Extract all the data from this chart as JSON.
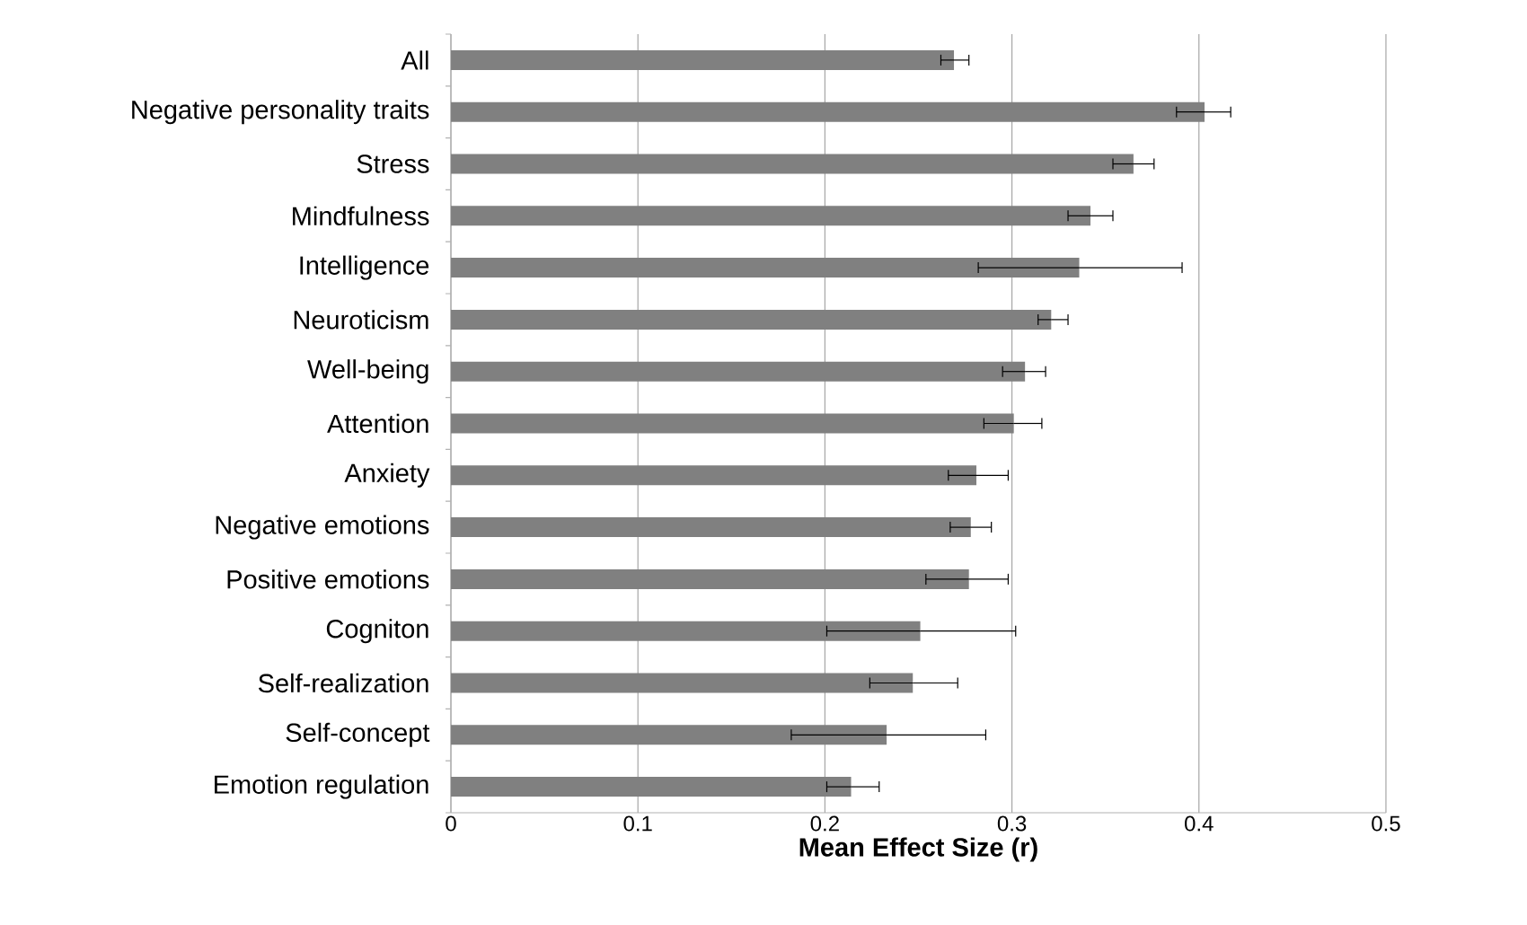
{
  "chart_data": {
    "type": "bar",
    "orientation": "horizontal",
    "xlabel": "Mean Effect Size (r)",
    "categories": [
      "All",
      "Negative personality traits",
      "Stress",
      "Mindfulness",
      "Intelligence",
      "Neuroticism",
      "Well-being",
      "Attention",
      "Anxiety",
      "Negative emotions",
      "Positive emotions",
      "Cogniton",
      "Self-realization",
      "Self-concept",
      "Emotion regulation"
    ],
    "values": [
      0.269,
      0.403,
      0.365,
      0.342,
      0.336,
      0.321,
      0.307,
      0.301,
      0.281,
      0.278,
      0.277,
      0.251,
      0.247,
      0.233,
      0.214
    ],
    "errors": [
      [
        0.262,
        0.277
      ],
      [
        0.388,
        0.417
      ],
      [
        0.354,
        0.376
      ],
      [
        0.33,
        0.354
      ],
      [
        0.282,
        0.391
      ],
      [
        0.314,
        0.33
      ],
      [
        0.295,
        0.318
      ],
      [
        0.285,
        0.316
      ],
      [
        0.266,
        0.298
      ],
      [
        0.267,
        0.289
      ],
      [
        0.254,
        0.298
      ],
      [
        0.201,
        0.302
      ],
      [
        0.224,
        0.271
      ],
      [
        0.182,
        0.286
      ],
      [
        0.201,
        0.229
      ]
    ],
    "color": "#808080",
    "xlim": [
      0,
      0.5
    ],
    "xticks": [
      0,
      0.1,
      0.2,
      0.3,
      0.4,
      0.5
    ],
    "grid": "x"
  }
}
